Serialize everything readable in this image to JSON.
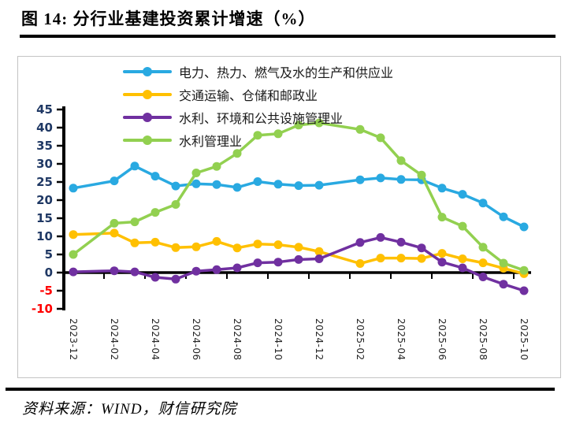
{
  "title": "图 14:  分行业基建投资累计增速（%）",
  "source": "资料来源：WIND，财信研究院",
  "colors": {
    "axis_line": "#000000",
    "y_label_positive": "#1f3864",
    "y_label_negative": "#ff0000",
    "x_label": "#262626",
    "box_border": "#c3c3c3"
  },
  "chart_data": {
    "type": "line",
    "title": "分行业基建投资累计增速（%）",
    "xlabel": "",
    "ylabel": "",
    "ylim": [
      -10,
      45
    ],
    "ytick_step": 5,
    "yticks": [
      45,
      40,
      35,
      30,
      25,
      20,
      15,
      10,
      5,
      0,
      -5,
      -10
    ],
    "grid": false,
    "legend_position": "top-inside-vertical",
    "x_axis_note": "monthly cumulative data, January observations absent (Jan–Feb combined)",
    "categories": [
      "2023-12",
      "2024-02",
      "2024-03",
      "2024-04",
      "2024-05",
      "2024-06",
      "2024-07",
      "2024-08",
      "2024-09",
      "2024-10",
      "2024-11",
      "2024-12",
      "2025-02",
      "2025-03",
      "2025-04",
      "2025-05",
      "2025-06",
      "2025-07",
      "2025-08",
      "2025-09",
      "2025-10"
    ],
    "month_offsets": [
      0,
      2,
      3,
      4,
      5,
      6,
      7,
      8,
      9,
      10,
      11,
      12,
      14,
      15,
      16,
      17,
      18,
      19,
      20,
      21,
      22
    ],
    "xtick_labels": [
      "2023-12",
      "2024-02",
      "2024-04",
      "2024-06",
      "2024-08",
      "2024-10",
      "2024-12",
      "2025-02",
      "2025-04",
      "2025-06",
      "2025-08",
      "2025-10"
    ],
    "series": [
      {
        "name": "电力、热力、燃气及水的生产和供应业",
        "color": "#29a9e1",
        "values": [
          23.3,
          25.3,
          29.4,
          26.6,
          23.9,
          24.5,
          24.3,
          23.5,
          25.1,
          24.4,
          24.0,
          24.1,
          25.6,
          26.1,
          25.7,
          25.6,
          23.3,
          21.6,
          19.2,
          15.4,
          12.6
        ]
      },
      {
        "name": "交通运输、仓储和邮政业",
        "color": "#ffc000",
        "values": [
          10.5,
          10.9,
          8.2,
          8.4,
          6.9,
          7.1,
          8.6,
          6.8,
          7.9,
          7.7,
          7.0,
          5.8,
          2.5,
          4.0,
          4.0,
          3.9,
          5.3,
          3.8,
          2.7,
          1.2,
          -0.3
        ]
      },
      {
        "name": "水利、环境和公共设施管理业",
        "color": "#7030a0",
        "values": [
          0.2,
          0.5,
          0.2,
          -1.3,
          -1.8,
          0.4,
          0.8,
          1.3,
          2.7,
          2.9,
          3.6,
          3.8,
          8.3,
          9.7,
          8.4,
          6.8,
          2.9,
          1.3,
          -1.2,
          -3.2,
          -5.0
        ]
      },
      {
        "name": "水利管理业",
        "color": "#92d050",
        "values": [
          5.0,
          13.6,
          14.0,
          16.6,
          18.8,
          27.5,
          29.3,
          32.9,
          37.9,
          38.3,
          40.7,
          41.3,
          39.5,
          37.2,
          30.9,
          26.9,
          15.3,
          12.8,
          7.0,
          2.6,
          0.6
        ]
      }
    ]
  }
}
